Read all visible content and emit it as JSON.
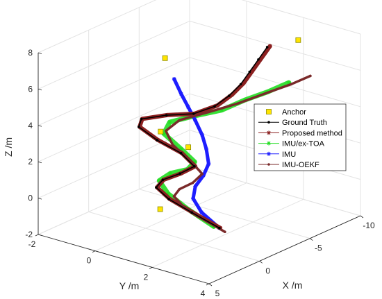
{
  "chart_data": {
    "type": "line3d",
    "xlabel": "X /m",
    "ylabel": "Y /m",
    "zlabel": "Z /m",
    "xlim": [
      -10,
      5
    ],
    "ylim": [
      -2,
      4
    ],
    "zlim": [
      -2,
      8
    ],
    "x_ticks": [
      "-10",
      "-5",
      "0",
      "5"
    ],
    "y_ticks": [
      "-2",
      "0",
      "2",
      "4"
    ],
    "z_ticks": [
      "-2",
      "0",
      "2",
      "4",
      "6",
      "8"
    ],
    "grid": true,
    "legend_position": "right",
    "colors": {
      "ground_truth": "#000000",
      "proposed": "#8B2020",
      "ex_toa": "#22DD22",
      "imu": "#1E1EFF",
      "oekf": "#7A2A2A",
      "anchor_fill": "#FFE400",
      "anchor_stroke": "#8C8C00"
    },
    "anchors": {
      "name": "Anchor",
      "points": [
        {
          "x": 4.2,
          "y": 2.0,
          "z": 1.0
        },
        {
          "x": 4.8,
          "y": 3.2,
          "z": 5.1
        },
        {
          "x": -7.5,
          "y": 2.7,
          "z": 7.7
        },
        {
          "x": -9.0,
          "y": -2.0,
          "z": 8.7
        },
        {
          "x": -7.0,
          "y": -1.8,
          "z": 4.8
        },
        {
          "x": -6.0,
          "y": -1.6,
          "z": 1.1
        }
      ]
    },
    "series": [
      {
        "name": "Ground Truth",
        "key": "ground_truth",
        "marker": "dot",
        "points": [
          {
            "x": 2.0,
            "y": 3.3,
            "z": 0.0
          },
          {
            "x": 2.2,
            "y": 2.4,
            "z": 0.5
          },
          {
            "x": 2.5,
            "y": 1.7,
            "z": 1.0
          },
          {
            "x": 2.9,
            "y": 1.4,
            "z": 1.6
          },
          {
            "x": 3.1,
            "y": 1.7,
            "z": 2.2
          },
          {
            "x": 2.8,
            "y": 2.2,
            "z": 2.7
          },
          {
            "x": 2.5,
            "y": 2.6,
            "z": 3.2
          },
          {
            "x": 2.7,
            "y": 2.2,
            "z": 3.8
          },
          {
            "x": 3.1,
            "y": 1.5,
            "z": 4.3
          },
          {
            "x": 3.5,
            "y": 1.0,
            "z": 4.9
          },
          {
            "x": 3.8,
            "y": 1.2,
            "z": 5.5
          },
          {
            "x": 3.3,
            "y": 1.9,
            "z": 5.9
          },
          {
            "x": 2.3,
            "y": 2.5,
            "z": 6.0
          },
          {
            "x": 0.5,
            "y": 2.6,
            "z": 6.0
          },
          {
            "x": -1.5,
            "y": 2.4,
            "z": 6.0
          },
          {
            "x": -3.5,
            "y": 2.1,
            "z": 6.0
          },
          {
            "x": -5.5,
            "y": 1.7,
            "z": 6.0
          },
          {
            "x": -7.5,
            "y": 1.3,
            "z": 6.0
          },
          {
            "x": -9.5,
            "y": 0.9,
            "z": 6.0
          }
        ]
      },
      {
        "name": "Proposed method",
        "key": "proposed",
        "marker": "star",
        "points": [
          {
            "x": 2.2,
            "y": 3.4,
            "z": 0.1
          },
          {
            "x": 2.4,
            "y": 2.5,
            "z": 0.6
          },
          {
            "x": 2.7,
            "y": 1.8,
            "z": 1.1
          },
          {
            "x": 3.1,
            "y": 1.5,
            "z": 1.7
          },
          {
            "x": 3.3,
            "y": 1.8,
            "z": 2.3
          },
          {
            "x": 3.0,
            "y": 2.3,
            "z": 2.8
          },
          {
            "x": 2.7,
            "y": 2.7,
            "z": 3.3
          },
          {
            "x": 2.9,
            "y": 2.3,
            "z": 3.9
          },
          {
            "x": 3.3,
            "y": 1.6,
            "z": 4.4
          },
          {
            "x": 3.7,
            "y": 1.1,
            "z": 5.0
          },
          {
            "x": 4.0,
            "y": 1.3,
            "z": 5.6
          },
          {
            "x": 3.5,
            "y": 2.0,
            "z": 6.0
          },
          {
            "x": 2.5,
            "y": 2.6,
            "z": 6.1
          },
          {
            "x": 0.5,
            "y": 2.7,
            "z": 6.1
          },
          {
            "x": -1.5,
            "y": 2.5,
            "z": 6.1
          },
          {
            "x": -3.5,
            "y": 2.2,
            "z": 6.1
          },
          {
            "x": -5.5,
            "y": 1.8,
            "z": 6.1
          },
          {
            "x": -7.5,
            "y": 1.4,
            "z": 6.1
          },
          {
            "x": -9.5,
            "y": 1.0,
            "z": 6.1
          }
        ]
      },
      {
        "name": "IMU/ex-TOA",
        "key": "ex_toa",
        "marker": "star",
        "points": [
          {
            "x": 2.0,
            "y": 3.1,
            "z": 0.0
          },
          {
            "x": 2.1,
            "y": 2.2,
            "z": 0.6
          },
          {
            "x": 2.3,
            "y": 1.6,
            "z": 1.2
          },
          {
            "x": 2.6,
            "y": 1.4,
            "z": 1.9
          },
          {
            "x": 2.9,
            "y": 1.9,
            "z": 2.6
          },
          {
            "x": 3.2,
            "y": 2.6,
            "z": 3.2
          },
          {
            "x": 3.6,
            "y": 3.0,
            "z": 3.9
          },
          {
            "x": 4.1,
            "y": 2.7,
            "z": 4.6
          },
          {
            "x": 4.4,
            "y": 2.2,
            "z": 5.3
          },
          {
            "x": 4.1,
            "y": 2.3,
            "z": 5.9
          },
          {
            "x": 3.0,
            "y": 2.8,
            "z": 6.2
          },
          {
            "x": 1.2,
            "y": 3.1,
            "z": 6.2
          },
          {
            "x": -0.8,
            "y": 3.2,
            "z": 6.3
          },
          {
            "x": -2.8,
            "y": 3.3,
            "z": 6.3
          },
          {
            "x": -4.6,
            "y": 3.4,
            "z": 6.4
          }
        ]
      },
      {
        "name": "IMU",
        "key": "imu",
        "marker": "star",
        "points": [
          {
            "x": 2.0,
            "y": 3.3,
            "z": 0.0
          },
          {
            "x": 1.8,
            "y": 2.6,
            "z": 0.5
          },
          {
            "x": 1.5,
            "y": 2.2,
            "z": 1.0
          },
          {
            "x": 1.0,
            "y": 2.1,
            "z": 1.5
          },
          {
            "x": 0.2,
            "y": 2.1,
            "z": 1.9
          },
          {
            "x": -0.6,
            "y": 2.0,
            "z": 2.3
          },
          {
            "x": -1.5,
            "y": 1.6,
            "z": 2.7
          },
          {
            "x": -2.5,
            "y": 1.1,
            "z": 3.0
          },
          {
            "x": -3.5,
            "y": 0.5,
            "z": 3.3
          },
          {
            "x": -4.5,
            "y": -0.1,
            "z": 3.5
          },
          {
            "x": -5.5,
            "y": -0.7,
            "z": 3.7
          },
          {
            "x": -6.5,
            "y": -1.3,
            "z": 4.0
          }
        ]
      },
      {
        "name": "IMU-OEKF",
        "key": "oekf",
        "marker": "dot",
        "points": [
          {
            "x": 2.3,
            "y": 3.6,
            "z": 0.0
          },
          {
            "x": 2.6,
            "y": 2.9,
            "z": 0.5
          },
          {
            "x": 3.0,
            "y": 2.4,
            "z": 1.0
          },
          {
            "x": 3.4,
            "y": 2.2,
            "z": 1.6
          },
          {
            "x": 3.7,
            "y": 2.5,
            "z": 2.2
          },
          {
            "x": 3.8,
            "y": 3.0,
            "z": 2.8
          },
          {
            "x": 3.7,
            "y": 3.3,
            "z": 3.4
          },
          {
            "x": 3.8,
            "y": 2.9,
            "z": 4.0
          },
          {
            "x": 4.1,
            "y": 2.4,
            "z": 4.7
          },
          {
            "x": 4.2,
            "y": 2.2,
            "z": 5.4
          },
          {
            "x": 3.7,
            "y": 2.5,
            "z": 6.0
          },
          {
            "x": 2.2,
            "y": 3.0,
            "z": 6.3
          },
          {
            "x": 0.2,
            "y": 3.3,
            "z": 6.4
          },
          {
            "x": -2.0,
            "y": 3.5,
            "z": 6.5
          },
          {
            "x": -4.0,
            "y": 3.7,
            "z": 6.6
          },
          {
            "x": -5.6,
            "y": 3.8,
            "z": 6.7
          }
        ]
      }
    ],
    "legend": [
      "Anchor",
      "Ground Truth",
      "Proposed method",
      "IMU/ex-TOA",
      "IMU",
      "IMU-OEKF"
    ]
  }
}
